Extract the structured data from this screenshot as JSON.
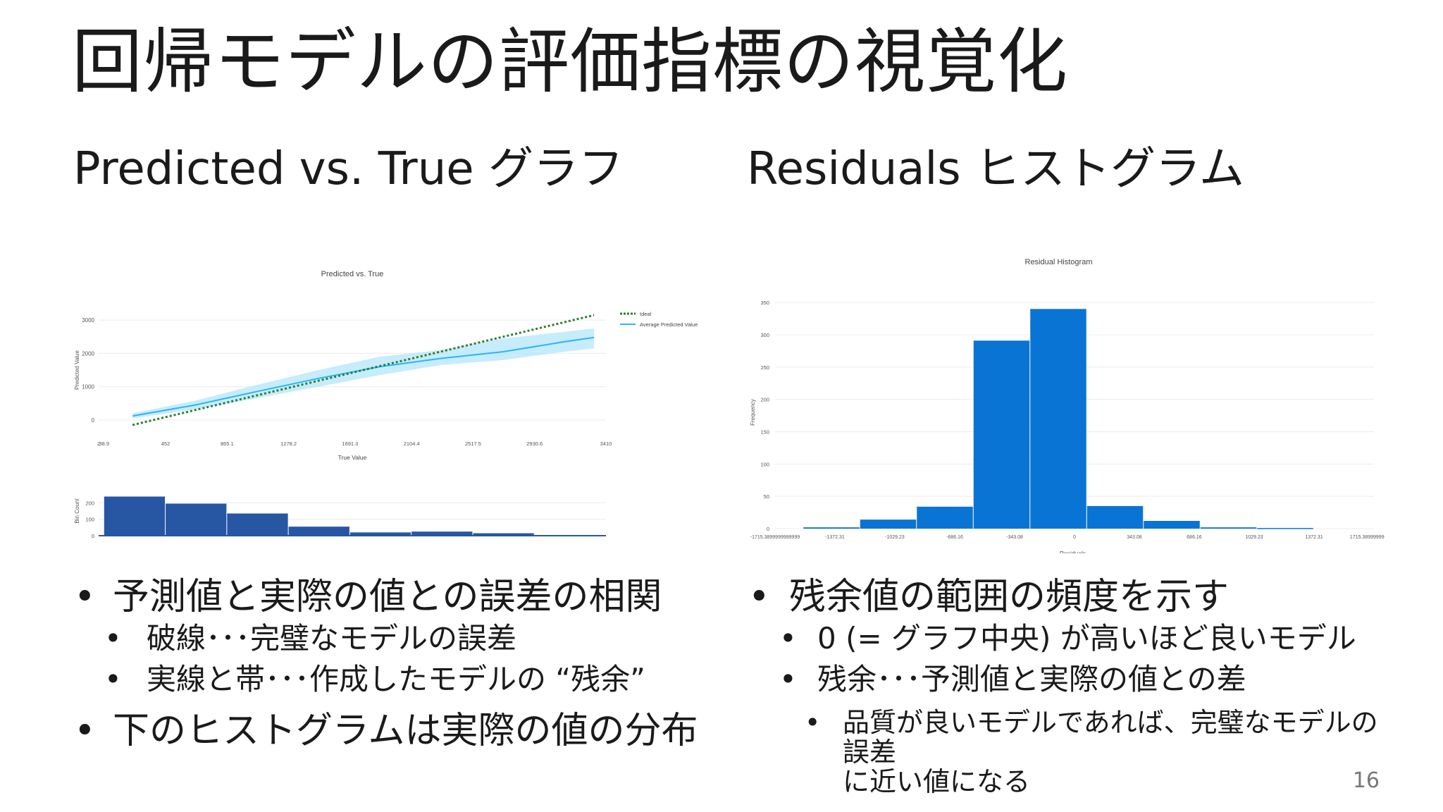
{
  "slide": {
    "title": "回帰モデルの評価指標の視覚化",
    "page_number": "16"
  },
  "left": {
    "heading": "Predicted vs. True グラフ",
    "bullets": [
      {
        "text": "予測値と実際の値との誤差の相関",
        "level": 1
      },
      {
        "text": "破線･･･完璧なモデルの誤差",
        "level": 2
      },
      {
        "text": "実線と帯･･･作成したモデルの “残余”",
        "level": 2
      },
      {
        "text": "下のヒストグラムは実際の値の分布",
        "level": 1
      }
    ]
  },
  "right": {
    "heading": "Residuals ヒストグラム",
    "bullets": [
      {
        "text": "残余値の範囲の頻度を示す",
        "level": 1
      },
      {
        "text": "0 (= グラフ中央) が高いほど良いモデル",
        "level": 2
      },
      {
        "text": "残余･･･予測値と実際の値との差",
        "level": 2
      },
      {
        "text": "品質が良いモデルであれば、完璧なモデルの",
        "level": 3
      },
      {
        "text": "誤差",
        "level": 3
      },
      {
        "text": "に近い値になる",
        "level": 3
      }
    ]
  },
  "chart_data": [
    {
      "type": "line",
      "title": "Predicted vs. True",
      "xlabel": "True Value",
      "ylabel": "Predicted Value",
      "xlim": [
        2,
        3410
      ],
      "ylim": [
        -300,
        3300
      ],
      "x_ticks": [
        "2",
        "38.9",
        "452",
        "865.1",
        "1278.2",
        "1691.3",
        "2104.4",
        "2517.5",
        "2930.6",
        "3410"
      ],
      "y_ticks": [
        0,
        1000,
        2000,
        3000
      ],
      "legend": "top-right",
      "colors": {
        "ideal": "#2e7d32",
        "average": "#29b6f6",
        "band": "#b3e5fc"
      },
      "series": [
        {
          "name": "Ideal",
          "x": [
            230,
            3330
          ],
          "y": [
            -150,
            3150
          ]
        },
        {
          "name": "Average Predicted Value",
          "x": [
            230,
            650,
            1060,
            1480,
            1890,
            2300,
            2720,
            3130,
            3330
          ],
          "y": [
            120,
            450,
            850,
            1250,
            1600,
            1850,
            2050,
            2350,
            2480
          ],
          "band_upper": [
            200,
            580,
            1050,
            1500,
            1900,
            2100,
            2450,
            2650,
            2750
          ],
          "band_lower": [
            50,
            320,
            650,
            1000,
            1350,
            1650,
            1800,
            2050,
            2150
          ]
        }
      ]
    },
    {
      "type": "bar",
      "ylabel": "Bin Count",
      "ylim": [
        0,
        300
      ],
      "y_ticks": [
        0,
        100,
        200
      ],
      "color": "#2756a3",
      "bin_edges": [
        38.9,
        452,
        865.1,
        1278.2,
        1691.3,
        2104.4,
        2517.5,
        2930.6,
        3410
      ],
      "values": [
        238,
        195,
        135,
        55,
        20,
        25,
        15,
        3
      ]
    },
    {
      "type": "bar",
      "title": "Residual Histogram",
      "xlabel": "Residuals",
      "ylabel": "Frequency",
      "ylim": [
        0,
        360
      ],
      "y_ticks": [
        0,
        50,
        100,
        150,
        200,
        250,
        300,
        350
      ],
      "x_ticks": [
        "-1715.3899999999999",
        "-1372.31",
        "-1029.23",
        "-686.16",
        "-343.08",
        "0",
        "343.08",
        "686.16",
        "1029.23",
        "1372.31",
        "1715.3899999999999"
      ],
      "color": "#0a74d4",
      "values": [
        2,
        14,
        34,
        291,
        340,
        35,
        12,
        2,
        1
      ]
    }
  ]
}
